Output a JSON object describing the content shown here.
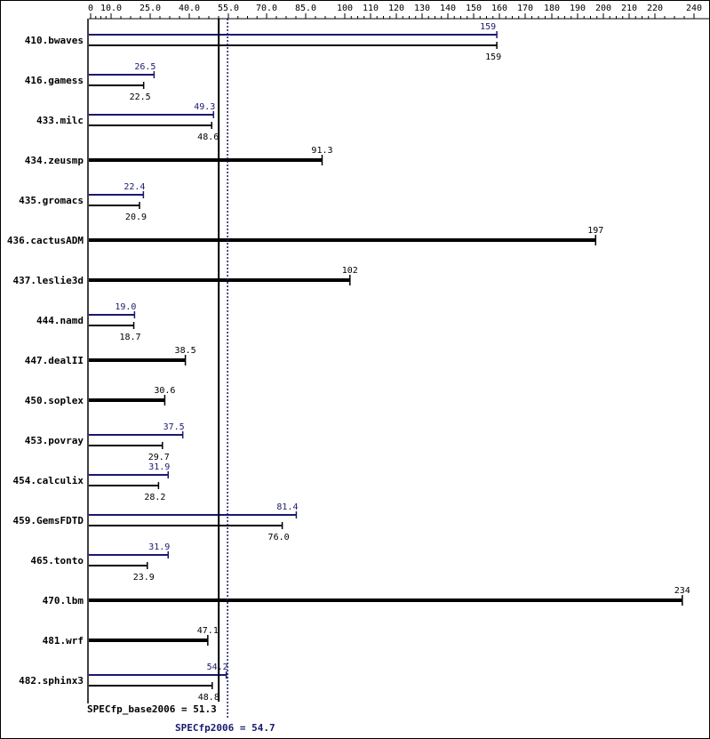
{
  "chart_data": {
    "type": "bar",
    "orientation": "horizontal",
    "title": "",
    "xlabel": "",
    "ylabel": "",
    "x_ticks": [
      "0",
      "10.0",
      "25.0",
      "40.0",
      "55.0",
      "70.0",
      "85.0",
      "100",
      "110",
      "120",
      "130",
      "140",
      "150",
      "160",
      "170",
      "180",
      "190",
      "200",
      "210",
      "220",
      "240"
    ],
    "x_scale": "piecewise-linear",
    "xlim": [
      0,
      240
    ],
    "grid": false,
    "categories": [
      "410.bwaves",
      "416.gamess",
      "433.milc",
      "434.zeusmp",
      "435.gromacs",
      "436.cactusADM",
      "437.leslie3d",
      "444.namd",
      "447.dealII",
      "450.soplex",
      "453.povray",
      "454.calculix",
      "459.GemsFDTD",
      "465.tonto",
      "470.lbm",
      "481.wrf",
      "482.sphinx3"
    ],
    "series": [
      {
        "name": "",
        "role": "peak",
        "color": "#191970",
        "values": [
          159,
          26.5,
          49.3,
          null,
          22.4,
          null,
          null,
          19.0,
          null,
          null,
          37.5,
          31.9,
          81.4,
          31.9,
          null,
          null,
          54.2
        ],
        "labels": [
          "159",
          "26.5",
          "49.3",
          "",
          "22.4",
          "",
          "",
          "19.0",
          "",
          "",
          "37.5",
          "31.9",
          "81.4",
          "31.9",
          "",
          "",
          "54.2"
        ]
      },
      {
        "name": "",
        "role": "base",
        "color": "#000000",
        "values": [
          159,
          22.5,
          48.6,
          91.3,
          20.9,
          197,
          102,
          18.7,
          38.5,
          30.6,
          29.7,
          28.2,
          76.0,
          23.9,
          234,
          47.1,
          48.8
        ],
        "labels": [
          "159",
          "22.5",
          "48.6",
          "91.3",
          "20.9",
          "197",
          "102",
          "18.7",
          "38.5",
          "30.6",
          "29.7",
          "28.2",
          "76.0",
          "23.9",
          "234",
          "47.1",
          "48.8"
        ]
      }
    ],
    "reference_lines": [
      {
        "label": "SPECfp_base2006 = 51.3",
        "value": 51.3,
        "style": "solid",
        "color": "#000000"
      },
      {
        "label": "SPECfp2006 = 54.7",
        "value": 54.7,
        "style": "dotted",
        "color": "#191970"
      }
    ]
  }
}
